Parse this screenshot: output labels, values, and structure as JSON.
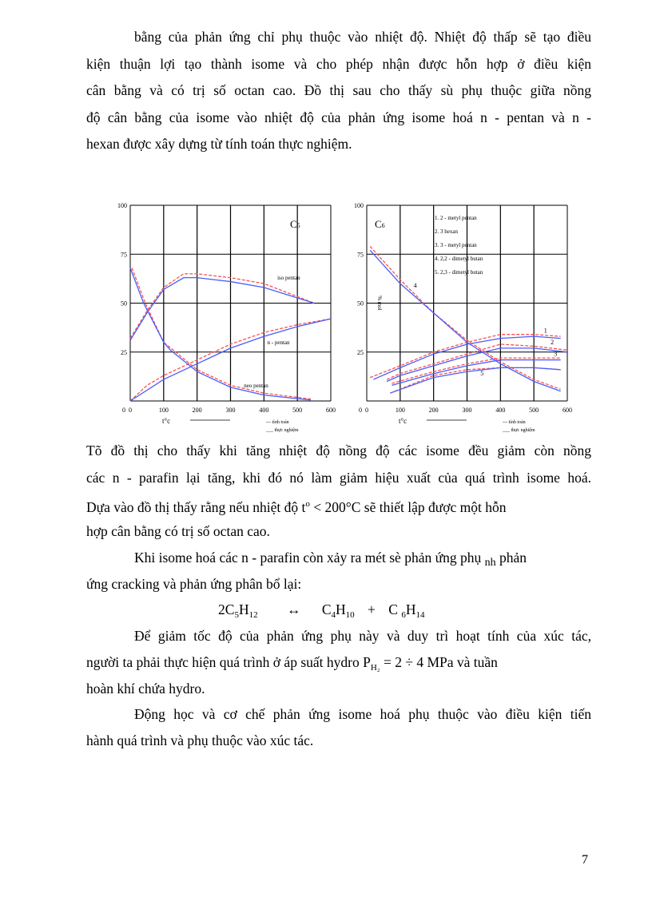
{
  "paragraphs_before": [
    "bằng của phản ứng chỉ phụ thuộc vào nhiệt  độ. Nhiệt  độ thấp sẽ tạo điều",
    "kiện thuận lợi tạo thành isome và cho phép nhận được hỗn hợp ở điều kiện",
    "cân bằng và có trị số octan cao. Đồ thị sau cho thấy sù phụ thuộc giữa nồng",
    "độ cân bằng của isome vào nhiệt độ của phản ứng isome hoá n - pentan và n -",
    "hexan  được xây dựng từ tính toán thực nghiệm."
  ],
  "paragraphs_after": [
    "Tõ đồ thị  cho thấy khi  tăng nhiệt  độ nồng độ các isome đều giảm  còn nồng",
    "các n - parafin lại tăng, khi đó nó làm giảm hiệu xuất của quá trình isome hoá.",
    "Dựa vào đồ thị thấy rằng nếu nhiệt  độ t",
    "hợp cân bằng có trị số octan cao.",
    "Khi isome hoá các n - parafin  còn xảy ra mét sè phản ứng phụ",
    "ứng cracking và phản ứng phân bổ lại:",
    "Để giảm  tốc độ của phản ứng phụ này và duy trì hoạt tính của xúc tác,",
    "người  ta phải thực hiện quá trình ở áp suất hydro P",
    "hoàn khí chứa hydro.",
    "Động học và cơ chế phản ứng isome hoá phụ thuộc vào điều kiện tiến",
    "hành quá trình và phụ thuộc vào xúc tác."
  ],
  "inline": {
    "deg_sup": "o",
    "temp_rest": " < 200°C sẽ thiết lập được một hỗn",
    "nh_sub": "nh",
    "nh_rest": "  phản",
    "h2_sub": "H₂",
    "pressure_rest": "  = 2 ÷ 4 MPa và tuần"
  },
  "formula": {
    "lhs": "2C",
    "lhs_s1": "5",
    "lhs_h": "H",
    "lhs_s2": "12",
    "arrow": "↔",
    "r1": "C",
    "r1_s1": "4",
    "r1_h": "H",
    "r1_s2": "10",
    "plus": "+",
    "r2": "C ",
    "r2_s1": "6",
    "r2_h": "H",
    "r2_s2": "14"
  },
  "page_number": "7",
  "colors": {
    "calculated": "#ff5050",
    "experimental": "#4a5cff",
    "grid": "#000000"
  },
  "chart_data": [
    {
      "type": "line",
      "label": "C5",
      "xlabel": "t°c",
      "xlim": [
        0,
        600
      ],
      "ylim": [
        0,
        100
      ],
      "xticks": [
        0,
        100,
        200,
        300,
        400,
        500,
        600
      ],
      "yticks": [
        25,
        50,
        75,
        100
      ],
      "grid": true,
      "legend": {
        "placement": "bottom-right",
        "entries": [
          "--- tính toán",
          "___ thực nghiệm"
        ]
      },
      "series": [
        {
          "name": "iso pentan",
          "calc": [
            [
              0,
              32
            ],
            [
              50,
              46
            ],
            [
              100,
              58
            ],
            [
              160,
              65
            ],
            [
              200,
              65
            ],
            [
              300,
              63
            ],
            [
              400,
              60
            ],
            [
              550,
              50
            ]
          ],
          "exp": [
            [
              0,
              31
            ],
            [
              50,
              45
            ],
            [
              100,
              57
            ],
            [
              160,
              63
            ],
            [
              200,
              63
            ],
            [
              300,
              61
            ],
            [
              400,
              58
            ],
            [
              550,
              50
            ]
          ],
          "label_at": [
            440,
            62
          ]
        },
        {
          "name": "n - pentan",
          "calc": [
            [
              0,
              0
            ],
            [
              50,
              8
            ],
            [
              100,
              13
            ],
            [
              200,
              21
            ],
            [
              300,
              29
            ],
            [
              400,
              35
            ],
            [
              500,
              39
            ],
            [
              600,
              42
            ]
          ],
          "exp": [
            [
              0,
              0
            ],
            [
              100,
              11
            ],
            [
              200,
              19
            ],
            [
              300,
              27
            ],
            [
              400,
              33
            ],
            [
              500,
              38
            ],
            [
              600,
              42
            ]
          ],
          "label_at": [
            410,
            29
          ]
        },
        {
          "name": "neo pentan",
          "calc": [
            [
              5,
              68
            ],
            [
              45,
              50
            ],
            [
              100,
              30
            ],
            [
              200,
              16
            ],
            [
              300,
              8
            ],
            [
              400,
              4
            ],
            [
              540,
              1
            ]
          ],
          "exp": [
            [
              0,
              68
            ],
            [
              40,
              50
            ],
            [
              100,
              30
            ],
            [
              120,
              26
            ],
            [
              200,
              15
            ],
            [
              300,
              7
            ],
            [
              400,
              3
            ],
            [
              540,
              0.5
            ]
          ],
          "label_at": [
            340,
            7
          ]
        }
      ]
    },
    {
      "type": "line",
      "label": "C6",
      "ylabel": "% mol",
      "xlabel": "t°c",
      "xlim": [
        0,
        600
      ],
      "ylim": [
        0,
        100
      ],
      "xticks": [
        0,
        100,
        200,
        300,
        400,
        500,
        600
      ],
      "yticks": [
        25,
        50,
        75,
        100
      ],
      "grid": true,
      "legend": {
        "placement": "bottom-right",
        "entries": [
          "--- tính toán",
          "___ thực nghiệm"
        ]
      },
      "names": [
        "1. 2 - metyl pentan",
        "2. 3 hexan",
        "3. 3 - metyl pentan",
        "4. 2,2 - dimetyl butan",
        "5. 2,3 - dimetyl butan"
      ],
      "series": [
        {
          "name": "1",
          "calc": [
            [
              10,
              12
            ],
            [
              100,
              18
            ],
            [
              200,
              25
            ],
            [
              300,
              30
            ],
            [
              400,
              34
            ],
            [
              500,
              34
            ],
            [
              580,
              33
            ]
          ],
          "exp": [
            [
              20,
              11
            ],
            [
              100,
              17
            ],
            [
              200,
              24
            ],
            [
              300,
              29
            ],
            [
              400,
              32
            ],
            [
              500,
              33
            ],
            [
              580,
              32
            ]
          ],
          "label_at": [
            530,
            35
          ]
        },
        {
          "name": "2",
          "calc": [
            [
              60,
              11
            ],
            [
              100,
              14
            ],
            [
              200,
              19
            ],
            [
              300,
              24
            ],
            [
              400,
              29
            ],
            [
              500,
              28
            ],
            [
              600,
              26
            ]
          ],
          "exp": [
            [
              60,
              10
            ],
            [
              100,
              13
            ],
            [
              200,
              18
            ],
            [
              300,
              23
            ],
            [
              400,
              27
            ],
            [
              500,
              27
            ],
            [
              600,
              25
            ]
          ],
          "label_at": [
            550,
            29
          ]
        },
        {
          "name": "3",
          "calc": [
            [
              75,
              9
            ],
            [
              200,
              15
            ],
            [
              300,
              19
            ],
            [
              400,
              22
            ],
            [
              500,
              22
            ],
            [
              580,
              22
            ]
          ],
          "exp": [
            [
              75,
              8
            ],
            [
              200,
              14
            ],
            [
              300,
              18
            ],
            [
              400,
              21
            ],
            [
              500,
              21
            ],
            [
              580,
              21
            ]
          ],
          "label_at": [
            560,
            23
          ]
        },
        {
          "name": "4",
          "calc": [
            [
              10,
              79
            ],
            [
              100,
              62
            ],
            [
              200,
              45
            ],
            [
              300,
              31
            ],
            [
              400,
              20
            ],
            [
              500,
              11
            ],
            [
              580,
              6
            ]
          ],
          "exp": [
            [
              10,
              77
            ],
            [
              100,
              60
            ],
            [
              200,
              45
            ],
            [
              300,
              30
            ],
            [
              400,
              19
            ],
            [
              500,
              10
            ],
            [
              580,
              5
            ]
          ],
          "label_at": [
            140,
            58
          ]
        },
        {
          "name": "5",
          "calc": [
            [
              70,
              4
            ],
            [
              200,
              13
            ],
            [
              300,
              16
            ],
            [
              400,
              17
            ],
            [
              500,
              17
            ],
            [
              580,
              16
            ]
          ],
          "exp": [
            [
              70,
              4
            ],
            [
              200,
              12
            ],
            [
              300,
              15
            ],
            [
              400,
              17
            ],
            [
              500,
              17
            ],
            [
              580,
              16
            ]
          ],
          "label_at": [
            340,
            13
          ]
        }
      ]
    }
  ]
}
